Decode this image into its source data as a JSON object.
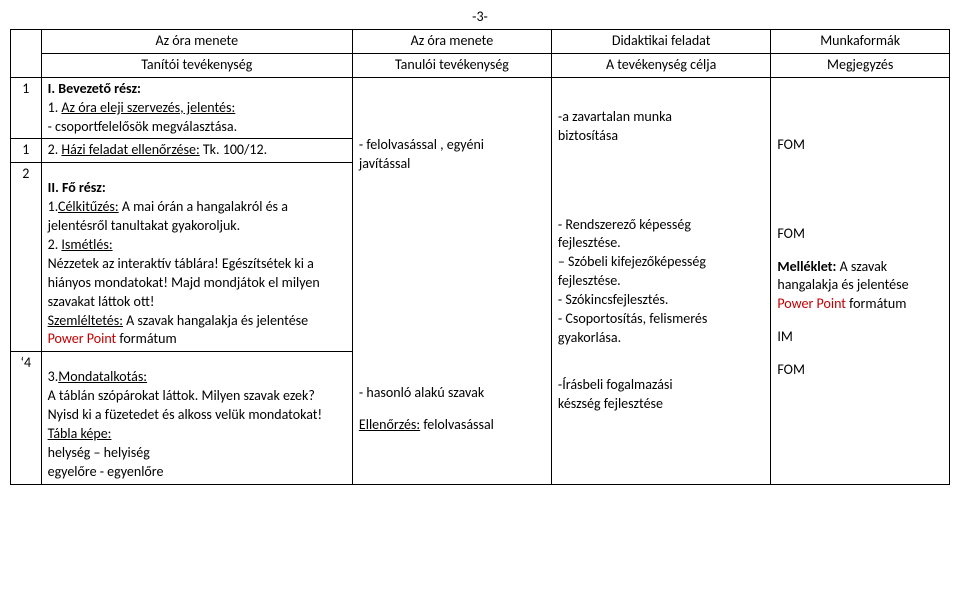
{
  "page_number": "-3-",
  "header": {
    "col1_top": "Az óra menete",
    "col1_sub": "Tanítói tevékenység",
    "col2_top": "Az óra menete",
    "col2_sub": "Tanulói tevékenység",
    "col3_top": "Didaktikai feladat",
    "col3_sub": "A tevékenység célja",
    "col4_top": "Munkaformák",
    "col4_sub": "Megjegyzés"
  },
  "rows": [
    {
      "num": "1",
      "tanito": [
        {
          "text": "I. Bevezető rész:",
          "bold": true
        },
        {
          "text": "1. ",
          "inline": true
        },
        {
          "text": "Az óra eleji szervezés, jelentés:",
          "underline": true,
          "inline_cont": true
        },
        {
          "text": "- csoportfelelősök megválasztása."
        }
      ]
    },
    {
      "num": "1",
      "tanito": [
        {
          "text": "2. ",
          "inline": true
        },
        {
          "text": "Házi feladat ellenőrzése:",
          "underline": true,
          "inline_cont": true
        },
        {
          "text": " Tk. 100/12.",
          "inline_cont": true
        }
      ]
    },
    {
      "num": "2",
      "tanito": [
        {
          "spacer": true
        },
        {
          "text": "II. Fő rész:",
          "bold": true
        },
        {
          "text": "1.",
          "inline": true
        },
        {
          "text": "Célkitűzés:",
          "underline": true,
          "inline_cont": true
        },
        {
          "text": " A mai órán a hangalakról és a jelentésről tanultakat gyakoroljuk.",
          "inline_cont": true
        },
        {
          "text": "2. ",
          "inline": true
        },
        {
          "text": "Ismétlés:",
          "underline": true,
          "inline_cont": true
        },
        {
          "text": "Nézzetek az interaktív táblára! Egészítsétek ki a hiányos mondatokat! Majd mondjátok el milyen szavakat láttok ott!"
        },
        {
          "text": "Szemléltetés:",
          "underline": true,
          "inline": true
        },
        {
          "text": " A szavak hangalakja és jelentése ",
          "inline_cont": true
        },
        {
          "text": "Power Point",
          "red": true,
          "inline_cont": true
        },
        {
          "text": " formátum",
          "inline_cont": true
        }
      ]
    },
    {
      "num": "‘4",
      "tanito": [
        {
          "spacer": true
        },
        {
          "text": "3.",
          "inline": true
        },
        {
          "text": "Mondatalkotás:",
          "underline": true,
          "inline_cont": true
        },
        {
          "text": "A táblán szópárokat láttok. Milyen szavak ezek?"
        },
        {
          "text": "Nyisd ki a füzetedet és alkoss velük mondatokat!"
        },
        {
          "text": "Tábla képe:",
          "underline": true
        },
        {
          "text": "helység – helyiség"
        },
        {
          "text": "egyelőre - egyenlőre"
        }
      ]
    }
  ],
  "tanulo": {
    "block1_a": "-  felolvasással , egyéni",
    "block1_b": "    javítással",
    "block2": "- hasonló alakú szavak",
    "block3_a": "Ellenőrzés:",
    "block3_b": " felolvasással"
  },
  "didaktikai": {
    "l1": "-a zavartalan munka",
    "l2": "  biztosítása",
    "l3": "- Rendszerező  képesség",
    "l4": "  fejlesztése.",
    "l5": "– Szóbeli kifejezőképesség",
    "l6": "   fejlesztése.",
    "l7": "- Szókincsfejlesztés.",
    "l8": "- Csoportosítás, felismerés",
    "l9": "  gyakorlása.",
    "l10": "-Írásbeli fogalmazási",
    "l11": "készség fejlesztése"
  },
  "munkaformak": {
    "m1": "FOM",
    "m2": "FOM",
    "m3a": "Melléklet:",
    "m3b": " A szavak hangalakja és jelentése ",
    "m3c": "Power Point",
    "m3d": " formátum",
    "m4": "IM",
    "m5": "FOM"
  }
}
